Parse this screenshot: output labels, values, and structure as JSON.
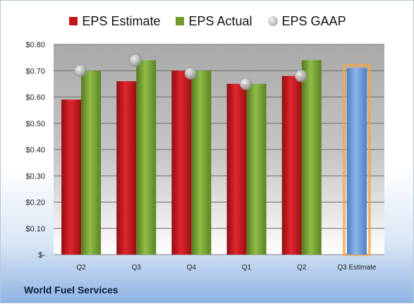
{
  "chart_data": {
    "type": "bar",
    "categories": [
      "Q2",
      "Q3",
      "Q4",
      "Q1",
      "Q2",
      "Q3 Estimate"
    ],
    "series": [
      {
        "name": "EPS Estimate",
        "values": [
          0.59,
          0.66,
          0.7,
          0.65,
          0.68,
          0.71
        ]
      },
      {
        "name": "EPS Actual",
        "values": [
          0.7,
          0.74,
          0.7,
          0.65,
          0.74,
          null
        ]
      },
      {
        "name": "EPS GAAP",
        "values": [
          0.7,
          0.74,
          0.69,
          0.65,
          0.68,
          null
        ]
      }
    ],
    "y_ticks": [
      "$-",
      "$0.10",
      "$0.20",
      "$0.30",
      "$0.40",
      "$0.50",
      "$0.60",
      "$0.70",
      "$0.80"
    ],
    "ylim": [
      0,
      0.8
    ],
    "grid": true,
    "legend_position": "top",
    "colors": {
      "estimate": "#c0151b",
      "actual": "#6f9a2d",
      "gaap": "#a8a8a8",
      "forecast": "#6c9bd6",
      "forecast_glow": "#f3a64c"
    }
  },
  "legend": {
    "estimate": "EPS Estimate",
    "actual": "EPS Actual",
    "gaap": "EPS GAAP"
  },
  "footer": {
    "company": "World Fuel Services"
  }
}
